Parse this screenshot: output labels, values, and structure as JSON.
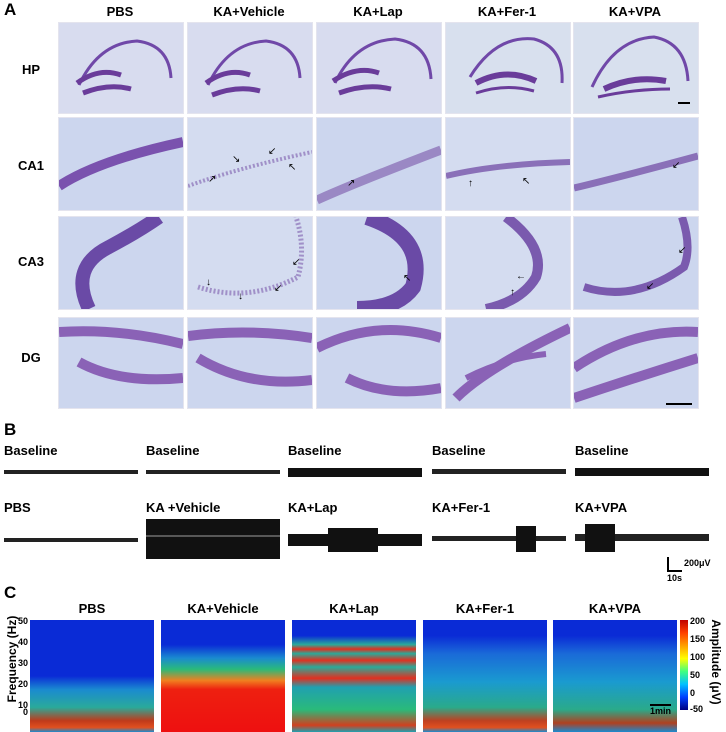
{
  "panel_a": {
    "label": "A",
    "columns": [
      "PBS",
      "KA+Vehicle",
      "KA+Lap",
      "KA+Fer-1",
      "KA+VPA"
    ],
    "rows": [
      "HP",
      "CA1",
      "CA3",
      "DG"
    ]
  },
  "panel_b": {
    "label": "B",
    "baseline_labels": [
      "Baseline",
      "Baseline",
      "Baseline",
      "Baseline",
      "Baseline"
    ],
    "treatment_labels": [
      "PBS",
      "KA +Vehicle",
      "KA+Lap",
      "KA+Fer-1",
      "KA+VPA"
    ],
    "scale_amplitude": "200μV",
    "scale_time": "10s"
  },
  "panel_c": {
    "label": "C",
    "titles": [
      "PBS",
      "KA+Vehicle",
      "KA+Lap",
      "KA+Fer-1",
      "KA+VPA"
    ],
    "y_axis_label": "Frequency (Hz)",
    "y_ticks": [
      "50",
      "40",
      "30",
      "20",
      "10",
      "0"
    ],
    "colorbar_label": "Amplitude (μV)",
    "colorbar_ticks": [
      "200",
      "150",
      "100",
      "50",
      "0",
      "-50"
    ],
    "time_scale": "1min"
  },
  "colors": {
    "stain_light": "#ccd4ee",
    "stain_dark": "#6a3c9a",
    "spec_background": "#0a2bd6"
  }
}
